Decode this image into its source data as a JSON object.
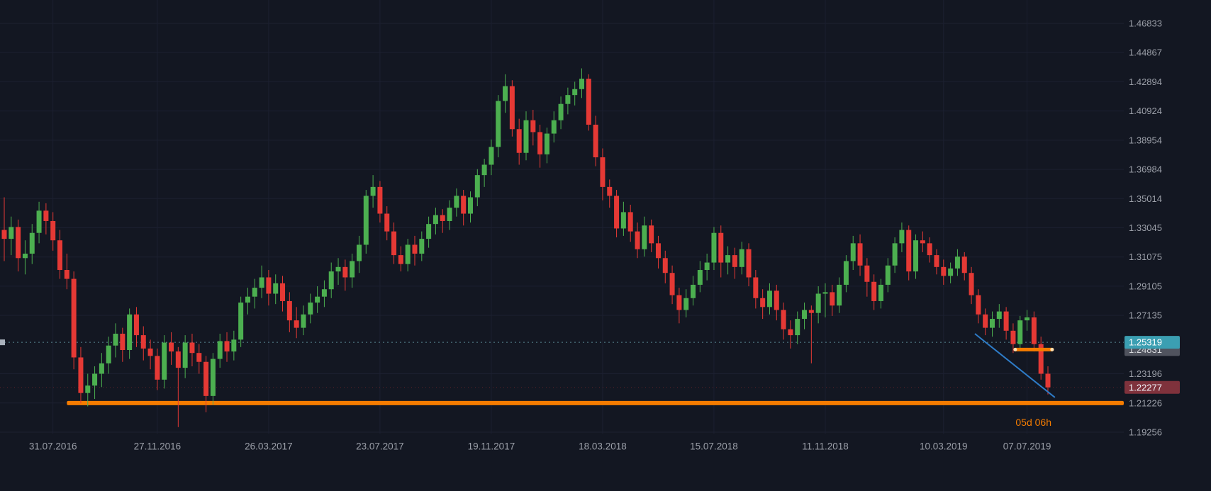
{
  "chart_data": {
    "type": "candlestick",
    "title": "",
    "timeframe_hint": "weekly",
    "y_range": [
      1.1916,
      1.48412
    ],
    "x_axis": {
      "ticks": [
        {
          "index": 7,
          "label": "31.07.2016"
        },
        {
          "index": 22,
          "label": "27.11.2016"
        },
        {
          "index": 38,
          "label": "26.03.2017"
        },
        {
          "index": 54,
          "label": "23.07.2017"
        },
        {
          "index": 70,
          "label": "19.11.2017"
        },
        {
          "index": 86,
          "label": "18.03.2018"
        },
        {
          "index": 102,
          "label": "15.07.2018"
        },
        {
          "index": 118,
          "label": "11.11.2018"
        },
        {
          "index": 135,
          "label": "10.03.2019"
        },
        {
          "index": 147,
          "label": "07.07.2019"
        }
      ]
    },
    "y_axis": {
      "ticks": [
        "1.46833",
        "1.44867",
        "1.42894",
        "1.40924",
        "1.38954",
        "1.36984",
        "1.35014",
        "1.33045",
        "1.31075",
        "1.29105",
        "1.27135",
        "1.23196",
        "1.21226",
        "1.19256"
      ]
    },
    "candles": [
      [
        1.329,
        1.351,
        1.308,
        1.323
      ],
      [
        1.323,
        1.338,
        1.312,
        1.331
      ],
      [
        1.331,
        1.336,
        1.301,
        1.31
      ],
      [
        1.31,
        1.322,
        1.299,
        1.313
      ],
      [
        1.313,
        1.333,
        1.306,
        1.327
      ],
      [
        1.327,
        1.348,
        1.32,
        1.342
      ],
      [
        1.342,
        1.347,
        1.326,
        1.335
      ],
      [
        1.335,
        1.341,
        1.315,
        1.322
      ],
      [
        1.322,
        1.329,
        1.296,
        1.302
      ],
      [
        1.302,
        1.313,
        1.289,
        1.296
      ],
      [
        1.296,
        1.301,
        1.235,
        1.243
      ],
      [
        1.243,
        1.25,
        1.212,
        1.219
      ],
      [
        1.219,
        1.232,
        1.21,
        1.224
      ],
      [
        1.224,
        1.237,
        1.215,
        1.232
      ],
      [
        1.232,
        1.246,
        1.223,
        1.239
      ],
      [
        1.239,
        1.257,
        1.232,
        1.251
      ],
      [
        1.251,
        1.266,
        1.243,
        1.259
      ],
      [
        1.259,
        1.263,
        1.24,
        1.248
      ],
      [
        1.248,
        1.276,
        1.242,
        1.272
      ],
      [
        1.272,
        1.277,
        1.25,
        1.258
      ],
      [
        1.258,
        1.264,
        1.241,
        1.249
      ],
      [
        1.249,
        1.255,
        1.235,
        1.244
      ],
      [
        1.244,
        1.249,
        1.221,
        1.228
      ],
      [
        1.228,
        1.258,
        1.222,
        1.253
      ],
      [
        1.253,
        1.26,
        1.238,
        1.247
      ],
      [
        1.247,
        1.25,
        1.196,
        1.236
      ],
      [
        1.236,
        1.258,
        1.229,
        1.253
      ],
      [
        1.253,
        1.259,
        1.237,
        1.246
      ],
      [
        1.246,
        1.252,
        1.232,
        1.24
      ],
      [
        1.24,
        1.244,
        1.206,
        1.217
      ],
      [
        1.217,
        1.246,
        1.211,
        1.242
      ],
      [
        1.242,
        1.259,
        1.236,
        1.254
      ],
      [
        1.254,
        1.26,
        1.24,
        1.247
      ],
      [
        1.247,
        1.261,
        1.241,
        1.255
      ],
      [
        1.255,
        1.284,
        1.25,
        1.28
      ],
      [
        1.28,
        1.29,
        1.272,
        1.284
      ],
      [
        1.284,
        1.296,
        1.276,
        1.29
      ],
      [
        1.29,
        1.305,
        1.283,
        1.297
      ],
      [
        1.297,
        1.302,
        1.278,
        1.286
      ],
      [
        1.286,
        1.299,
        1.279,
        1.293
      ],
      [
        1.293,
        1.298,
        1.274,
        1.281
      ],
      [
        1.281,
        1.287,
        1.26,
        1.268
      ],
      [
        1.268,
        1.277,
        1.256,
        1.263
      ],
      [
        1.263,
        1.278,
        1.258,
        1.272
      ],
      [
        1.272,
        1.286,
        1.266,
        1.28
      ],
      [
        1.28,
        1.291,
        1.273,
        1.284
      ],
      [
        1.284,
        1.295,
        1.277,
        1.289
      ],
      [
        1.289,
        1.307,
        1.283,
        1.301
      ],
      [
        1.301,
        1.31,
        1.292,
        1.304
      ],
      [
        1.304,
        1.309,
        1.288,
        1.297
      ],
      [
        1.297,
        1.313,
        1.29,
        1.308
      ],
      [
        1.308,
        1.325,
        1.3,
        1.319
      ],
      [
        1.319,
        1.356,
        1.313,
        1.352
      ],
      [
        1.352,
        1.366,
        1.344,
        1.358
      ],
      [
        1.358,
        1.362,
        1.334,
        1.34
      ],
      [
        1.34,
        1.345,
        1.322,
        1.328
      ],
      [
        1.328,
        1.334,
        1.306,
        1.312
      ],
      [
        1.312,
        1.318,
        1.301,
        1.306
      ],
      [
        1.306,
        1.323,
        1.301,
        1.319
      ],
      [
        1.319,
        1.325,
        1.305,
        1.313
      ],
      [
        1.313,
        1.328,
        1.308,
        1.323
      ],
      [
        1.323,
        1.338,
        1.317,
        1.333
      ],
      [
        1.333,
        1.344,
        1.326,
        1.339
      ],
      [
        1.339,
        1.343,
        1.327,
        1.335
      ],
      [
        1.335,
        1.349,
        1.329,
        1.344
      ],
      [
        1.344,
        1.357,
        1.338,
        1.352
      ],
      [
        1.352,
        1.356,
        1.332,
        1.34
      ],
      [
        1.34,
        1.355,
        1.334,
        1.351
      ],
      [
        1.351,
        1.37,
        1.345,
        1.366
      ],
      [
        1.366,
        1.377,
        1.358,
        1.373
      ],
      [
        1.373,
        1.39,
        1.366,
        1.385
      ],
      [
        1.385,
        1.42,
        1.378,
        1.416
      ],
      [
        1.416,
        1.434,
        1.408,
        1.426
      ],
      [
        1.426,
        1.43,
        1.392,
        1.397
      ],
      [
        1.397,
        1.404,
        1.373,
        1.381
      ],
      [
        1.381,
        1.409,
        1.376,
        1.403
      ],
      [
        1.403,
        1.41,
        1.386,
        1.395
      ],
      [
        1.395,
        1.4,
        1.371,
        1.38
      ],
      [
        1.38,
        1.398,
        1.374,
        1.394
      ],
      [
        1.394,
        1.409,
        1.388,
        1.403
      ],
      [
        1.403,
        1.419,
        1.397,
        1.414
      ],
      [
        1.414,
        1.425,
        1.407,
        1.42
      ],
      [
        1.42,
        1.429,
        1.413,
        1.424
      ],
      [
        1.424,
        1.438,
        1.418,
        1.431
      ],
      [
        1.431,
        1.434,
        1.396,
        1.4
      ],
      [
        1.4,
        1.406,
        1.372,
        1.378
      ],
      [
        1.378,
        1.384,
        1.349,
        1.358
      ],
      [
        1.358,
        1.363,
        1.344,
        1.352
      ],
      [
        1.352,
        1.356,
        1.324,
        1.33
      ],
      [
        1.33,
        1.348,
        1.325,
        1.341
      ],
      [
        1.341,
        1.346,
        1.321,
        1.328
      ],
      [
        1.328,
        1.334,
        1.31,
        1.316
      ],
      [
        1.316,
        1.338,
        1.311,
        1.332
      ],
      [
        1.332,
        1.336,
        1.314,
        1.32
      ],
      [
        1.32,
        1.325,
        1.303,
        1.31
      ],
      [
        1.31,
        1.315,
        1.293,
        1.3
      ],
      [
        1.3,
        1.305,
        1.279,
        1.285
      ],
      [
        1.285,
        1.29,
        1.266,
        1.275
      ],
      [
        1.275,
        1.289,
        1.27,
        1.283
      ],
      [
        1.283,
        1.298,
        1.278,
        1.292
      ],
      [
        1.292,
        1.308,
        1.287,
        1.302
      ],
      [
        1.302,
        1.313,
        1.295,
        1.307
      ],
      [
        1.307,
        1.331,
        1.302,
        1.327
      ],
      [
        1.327,
        1.332,
        1.297,
        1.307
      ],
      [
        1.307,
        1.318,
        1.299,
        1.312
      ],
      [
        1.312,
        1.317,
        1.296,
        1.304
      ],
      [
        1.304,
        1.321,
        1.299,
        1.316
      ],
      [
        1.316,
        1.32,
        1.291,
        1.297
      ],
      [
        1.297,
        1.302,
        1.276,
        1.283
      ],
      [
        1.283,
        1.289,
        1.269,
        1.277
      ],
      [
        1.277,
        1.293,
        1.272,
        1.288
      ],
      [
        1.288,
        1.292,
        1.268,
        1.275
      ],
      [
        1.275,
        1.28,
        1.255,
        1.262
      ],
      [
        1.262,
        1.268,
        1.249,
        1.258
      ],
      [
        1.258,
        1.274,
        1.252,
        1.269
      ],
      [
        1.269,
        1.28,
        1.262,
        1.275
      ],
      [
        1.275,
        1.278,
        1.239,
        1.273
      ],
      [
        1.273,
        1.291,
        1.266,
        1.286
      ],
      [
        1.286,
        1.293,
        1.27,
        1.287
      ],
      [
        1.287,
        1.292,
        1.271,
        1.278
      ],
      [
        1.278,
        1.297,
        1.273,
        1.292
      ],
      [
        1.292,
        1.312,
        1.287,
        1.308
      ],
      [
        1.308,
        1.325,
        1.302,
        1.32
      ],
      [
        1.32,
        1.326,
        1.298,
        1.305
      ],
      [
        1.305,
        1.31,
        1.284,
        1.294
      ],
      [
        1.294,
        1.299,
        1.275,
        1.281
      ],
      [
        1.281,
        1.296,
        1.276,
        1.292
      ],
      [
        1.292,
        1.31,
        1.287,
        1.305
      ],
      [
        1.305,
        1.324,
        1.3,
        1.32
      ],
      [
        1.32,
        1.334,
        1.314,
        1.329
      ],
      [
        1.329,
        1.332,
        1.295,
        1.301
      ],
      [
        1.301,
        1.326,
        1.296,
        1.322
      ],
      [
        1.322,
        1.328,
        1.314,
        1.32
      ],
      [
        1.32,
        1.324,
        1.307,
        1.312
      ],
      [
        1.312,
        1.316,
        1.299,
        1.304
      ],
      [
        1.304,
        1.309,
        1.292,
        1.298
      ],
      [
        1.298,
        1.307,
        1.293,
        1.303
      ],
      [
        1.303,
        1.316,
        1.298,
        1.311
      ],
      [
        1.311,
        1.314,
        1.295,
        1.3
      ],
      [
        1.3,
        1.304,
        1.279,
        1.285
      ],
      [
        1.285,
        1.289,
        1.266,
        1.272
      ],
      [
        1.272,
        1.276,
        1.258,
        1.263
      ],
      [
        1.263,
        1.274,
        1.257,
        1.269
      ],
      [
        1.269,
        1.279,
        1.263,
        1.274
      ],
      [
        1.274,
        1.277,
        1.255,
        1.261
      ],
      [
        1.261,
        1.266,
        1.246,
        1.252
      ],
      [
        1.252,
        1.271,
        1.248,
        1.268
      ],
      [
        1.268,
        1.275,
        1.261,
        1.27
      ],
      [
        1.27,
        1.274,
        1.247,
        1.252
      ],
      [
        1.252,
        1.257,
        1.228,
        1.232
      ],
      [
        1.232,
        1.237,
        1.218,
        1.2228
      ]
    ],
    "price_tags": [
      {
        "label": "1.24831",
        "value": 1.24831,
        "bg": "#50535e",
        "fg": "#d8dade",
        "name": "price-tag-selected-drawing"
      },
      {
        "label": "1.25319",
        "value": 1.25319,
        "bg": "#3b9fb2",
        "fg": "#ffffff",
        "name": "price-tag-alert-line"
      },
      {
        "label": "1.22277",
        "value": 1.22277,
        "bg": "#7f323c",
        "fg": "#f0f3fa",
        "name": "price-tag-last-price"
      }
    ],
    "overlays": {
      "support_zone": {
        "price": 1.2122,
        "from_index": 9,
        "color": "#f57c00",
        "thickness": 6
      },
      "alert_line": {
        "price": 1.25319,
        "color": "#6aa3b0",
        "style": "dashed"
      },
      "last_price_line": {
        "price": 1.22277,
        "color": "#e53935",
        "style": "dotted"
      },
      "trendline": {
        "from_index": 139.5,
        "from_price": 1.259,
        "to_index": 151,
        "to_price": 1.216,
        "color": "#2e7cc8"
      },
      "selected_level": {
        "price": 1.2483,
        "from_index": 145.3,
        "to_index": 150.6,
        "color": "#f57c00"
      },
      "countdown": {
        "label": "05d 06h",
        "color": "#f57c00"
      }
    },
    "colors": {
      "background": "#131722",
      "grid": "#1c2030",
      "up": "#4caf50",
      "down": "#e53935",
      "axis_text": "#9b9fa8"
    },
    "legend_position": "none",
    "grid": "on"
  }
}
